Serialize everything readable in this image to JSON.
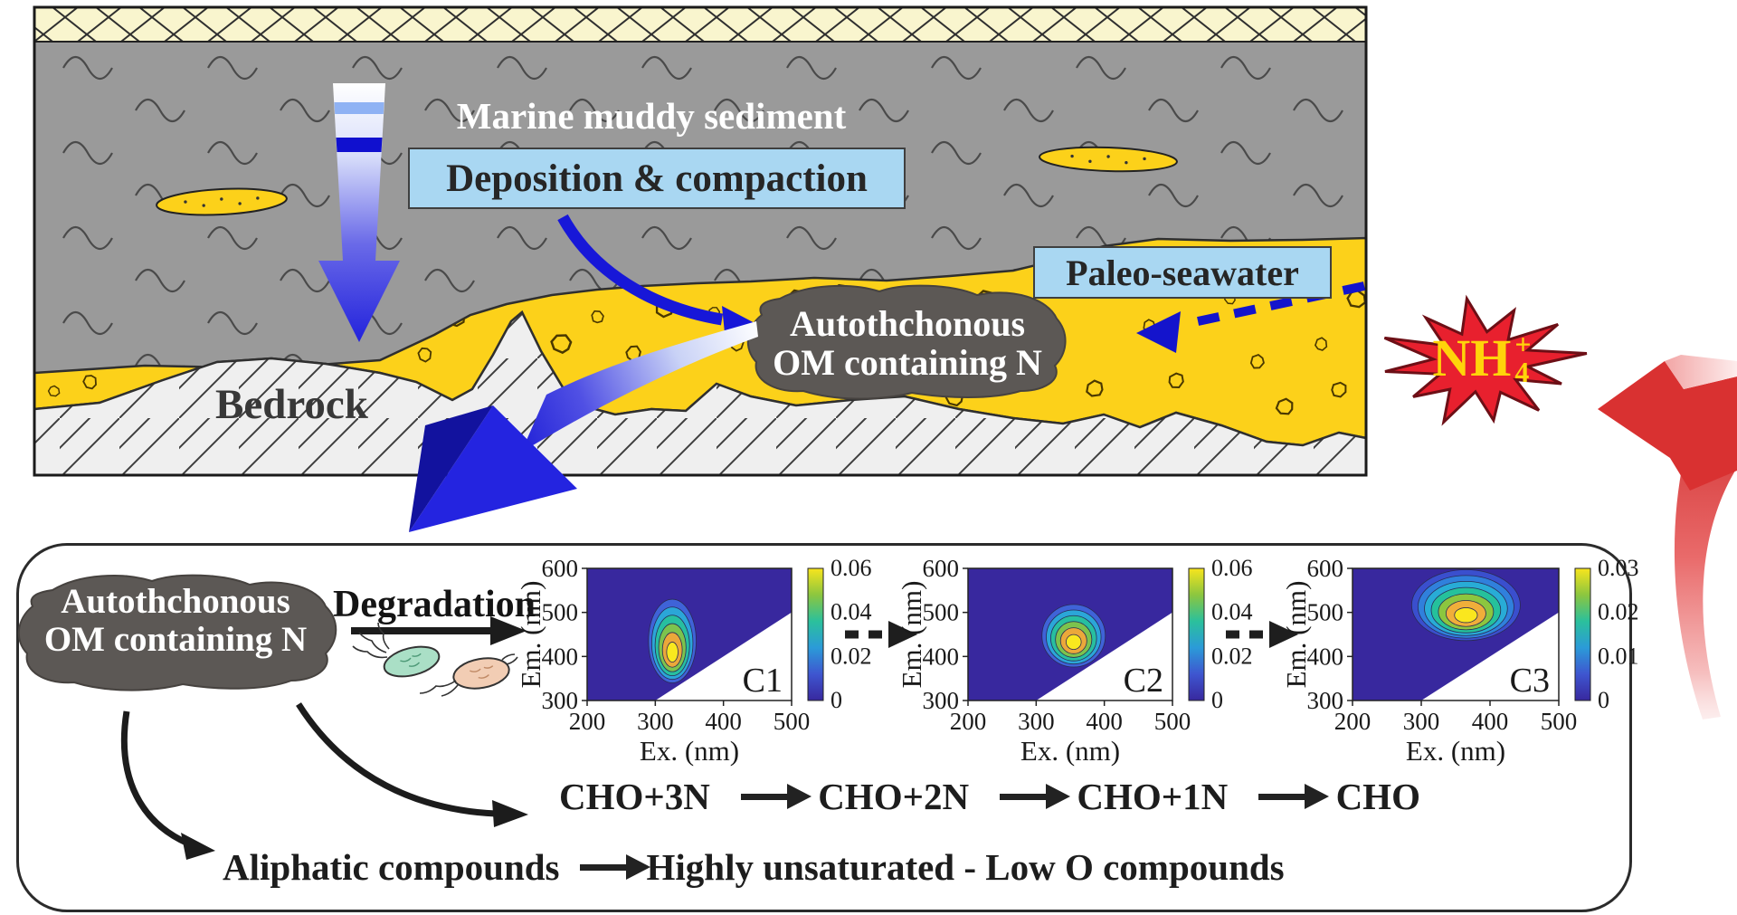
{
  "scene": {
    "marine_label": "Marine muddy sediment",
    "deposition_label": "Deposition & compaction",
    "paleo_label": "Paleo-seawater",
    "bedrock_label": "Bedrock",
    "om_blob": {
      "line1": "Autothchonous",
      "line2": "OM containing N"
    },
    "nh4": {
      "base": "NH",
      "sup": "+",
      "sub": "4"
    }
  },
  "process": {
    "om_blob": {
      "line1": "Autothchonous",
      "line2": "OM containing N"
    },
    "degradation_label": "Degradation",
    "cho_chain": [
      "CHO+3N",
      "CHO+2N",
      "CHO+1N",
      "CHO"
    ],
    "aliphatic_label": "Aliphatic compounds",
    "unsaturated_label": "Highly unsaturated - Low O compounds"
  },
  "chart_data": [
    {
      "type": "contour",
      "label": "C1",
      "xlabel": "Ex. (nm)",
      "ylabel": "Em. (nm)",
      "xlim": [
        200,
        500
      ],
      "ylim": [
        300,
        600
      ],
      "xticks": [
        200,
        300,
        400,
        500
      ],
      "yticks": [
        300,
        400,
        500,
        600
      ],
      "colorbar_max": 0.06,
      "colorbar_ticks": [
        0,
        0.02,
        0.04,
        0.06
      ],
      "peak": {
        "ex": 325,
        "em": 405,
        "value": 0.06
      },
      "extent": {
        "ex": [
          295,
          365
        ],
        "em": [
          340,
          530
        ]
      },
      "levels": 6,
      "mask": "em < ex (white lower-right triangle)"
    },
    {
      "type": "contour",
      "label": "C2",
      "xlabel": "Ex. (nm)",
      "ylabel": "Em. (nm)",
      "xlim": [
        200,
        500
      ],
      "ylim": [
        300,
        600
      ],
      "xticks": [
        200,
        300,
        400,
        500
      ],
      "yticks": [
        300,
        400,
        500,
        600
      ],
      "colorbar_max": 0.06,
      "colorbar_ticks": [
        0,
        0.02,
        0.04,
        0.06
      ],
      "peak": {
        "ex": 355,
        "em": 430,
        "value": 0.06
      },
      "extent": {
        "ex": [
          310,
          403
        ],
        "em": [
          376,
          518
        ]
      },
      "levels": 6,
      "mask": "em < ex (white lower-right triangle)"
    },
    {
      "type": "contour",
      "label": "C3",
      "xlabel": "Ex. (nm)",
      "ylabel": "Em. (nm)",
      "xlim": [
        200,
        500
      ],
      "ylim": [
        300,
        600
      ],
      "xticks": [
        200,
        300,
        400,
        500
      ],
      "yticks": [
        300,
        400,
        500,
        600
      ],
      "colorbar_max": 0.03,
      "colorbar_ticks": [
        0,
        0.01,
        0.02,
        0.03
      ],
      "peak": {
        "ex": 365,
        "em": 490,
        "value": 0.032
      },
      "extent": {
        "ex": [
          299,
          457
        ],
        "em": [
          436,
          597
        ]
      },
      "levels": 7,
      "mask": "em < ex (white lower-right triangle)"
    }
  ],
  "chart_style": {
    "colormap": "parula-like",
    "background": "#38289E",
    "contour_colors_6": [
      "#3F63D8",
      "#2BA6D8",
      "#27BFA0",
      "#7CC34D",
      "#EBA83A",
      "#F9E81F"
    ],
    "contour_colors_7": [
      "#3A4FCE",
      "#3080DC",
      "#28ACD6",
      "#25C19B",
      "#8CC63F",
      "#F0AE3A",
      "#FAE71E"
    ],
    "colorbar_gradient_top_to_bottom": [
      "#F8E51D",
      "#8CC63F",
      "#2BC09C",
      "#2B9BD8",
      "#3E56D0",
      "#38289E"
    ]
  },
  "colors": {
    "mud_gray": "#9A9A9A",
    "aquifer_yellow": "#FCD11A",
    "top_band": "#F9F5CE",
    "bedrock": "#EFEFEF",
    "label_box_blue": "#A9D7F2",
    "om_blob_gray": "#5C5855",
    "star_red": "#E8202E",
    "nh4_yellow": "#FFD40A",
    "arrow_blue": "#1717D8",
    "arrow_red": "#D93131"
  }
}
